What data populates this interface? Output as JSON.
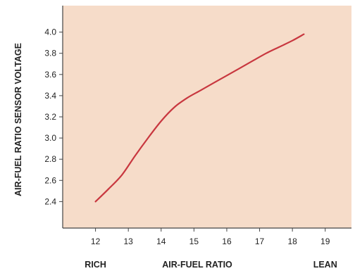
{
  "chart_data": {
    "type": "line",
    "ylabel": "AIR-FUEL RATIO SENSOR VOLTAGE",
    "xlabel": "AIR-FUEL RATIO",
    "rich_label": "RICH",
    "lean_label": "LEAN",
    "xlim": [
      11.0,
      19.8
    ],
    "ylim": [
      2.15,
      4.25
    ],
    "x_ticks": [
      12,
      13,
      14,
      15,
      16,
      17,
      18,
      19
    ],
    "y_ticks": [
      "2.4",
      "2.6",
      "2.8",
      "3.0",
      "3.2",
      "3.4",
      "3.6",
      "3.8",
      "4.0"
    ],
    "series": [
      {
        "x": [
          12.0,
          12.4,
          12.8,
          13.2,
          13.6,
          14.0,
          14.4,
          14.8,
          15.2,
          15.6,
          16.0,
          16.4,
          16.8,
          17.2,
          17.6,
          18.0,
          18.35
        ],
        "y": [
          2.4,
          2.52,
          2.65,
          2.83,
          3.0,
          3.16,
          3.29,
          3.38,
          3.45,
          3.52,
          3.59,
          3.66,
          3.73,
          3.8,
          3.86,
          3.92,
          3.98
        ]
      }
    ],
    "colors": {
      "background": "#f6dcc9",
      "line": "#c8373f",
      "axis": "#444444"
    },
    "grid": false
  }
}
